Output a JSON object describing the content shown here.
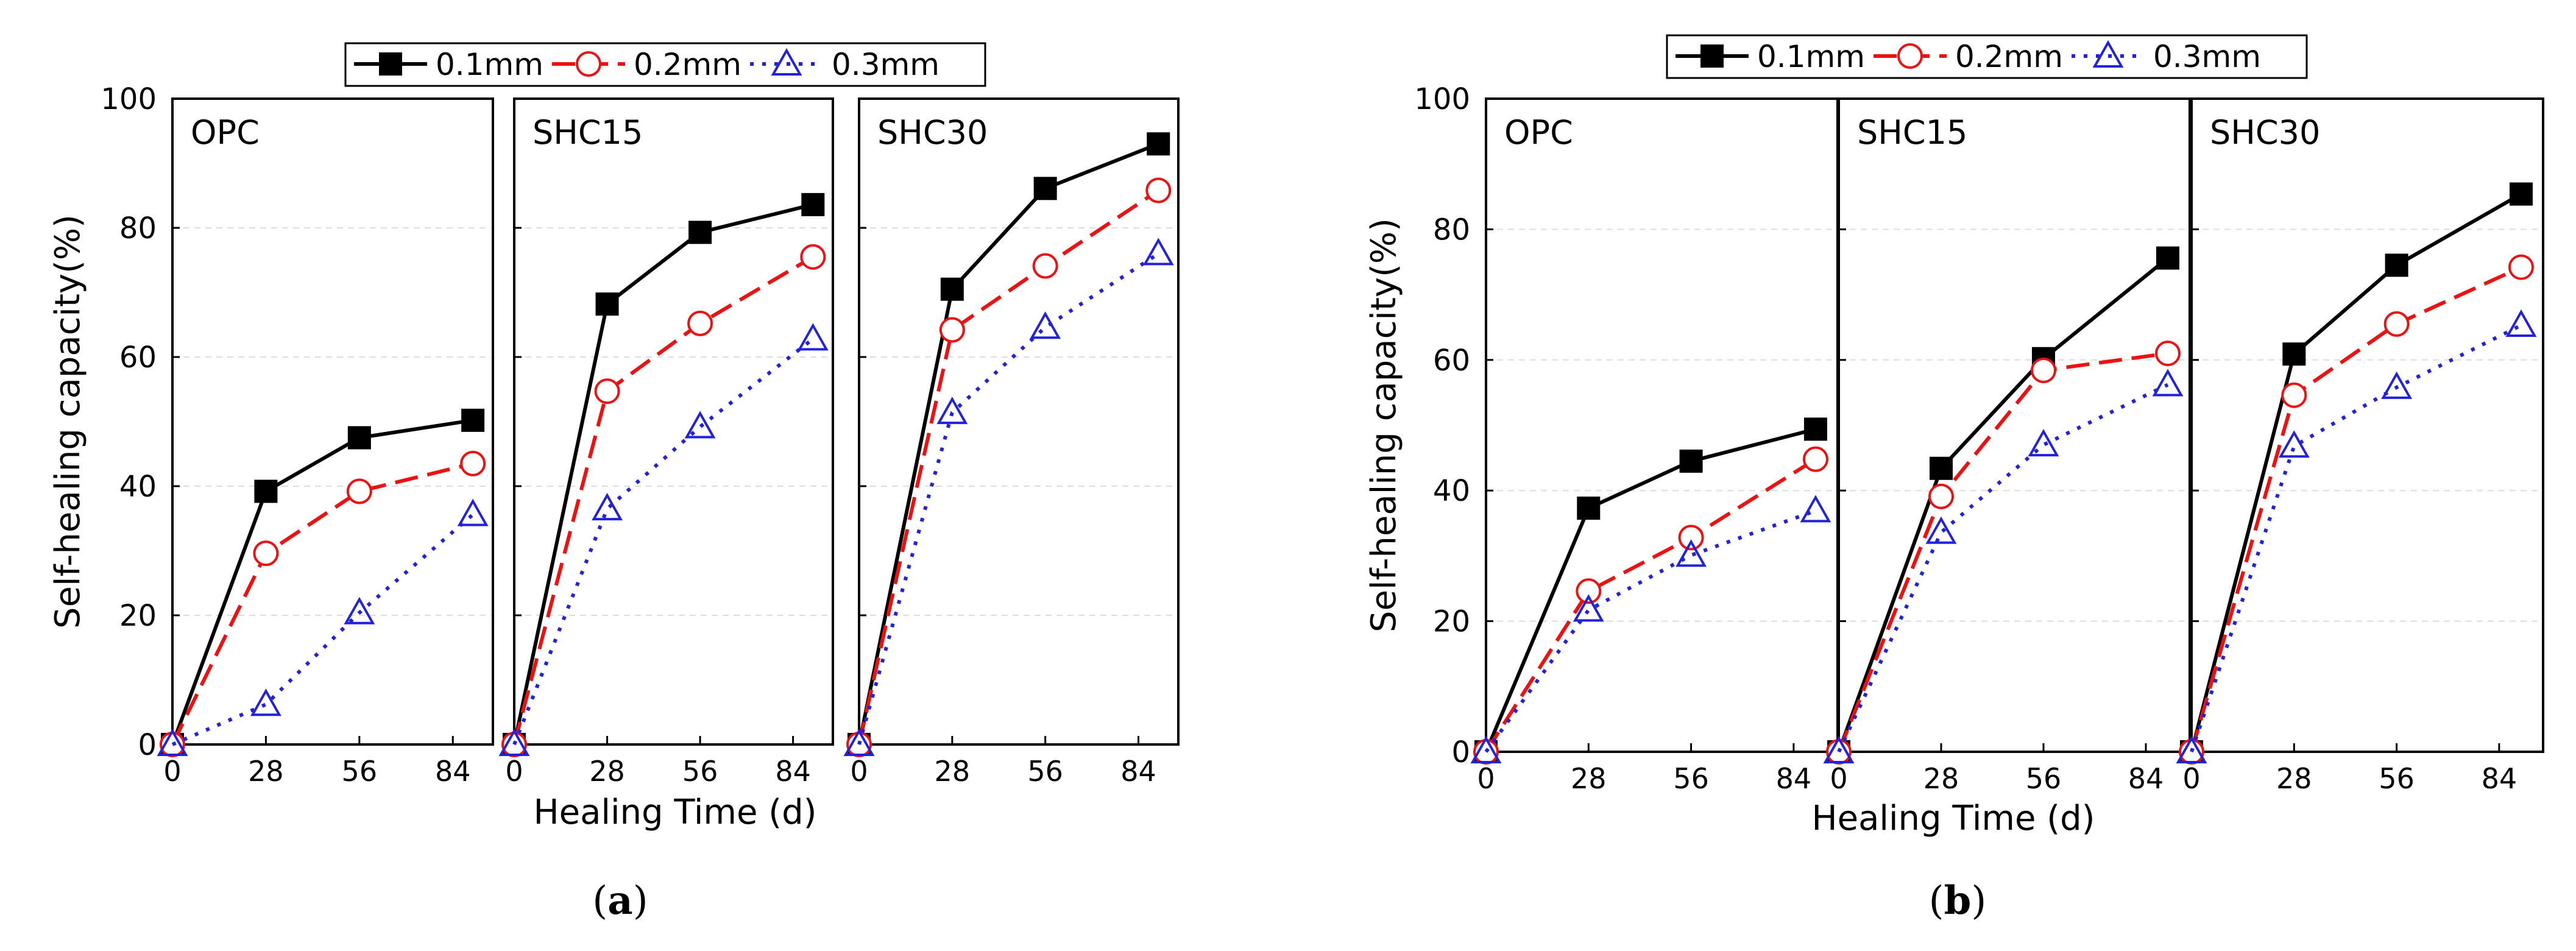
{
  "colors": {
    "s01": "#000000",
    "s02": "#ee1111",
    "s03": "#2222dd",
    "grid": "#dddddd"
  },
  "chart_data": [
    {
      "id": "a",
      "type": "line",
      "caption_letter": "a",
      "caption": "(a)",
      "xlabel": "Healing Time (d)",
      "ylabel": "Self-healing capacity(%)",
      "ylim": [
        0,
        100
      ],
      "yticks": [
        "0",
        "20",
        "40",
        "60",
        "80",
        "100"
      ],
      "xlim": [
        0,
        96
      ],
      "xticks": [
        "0",
        "28",
        "56",
        "84"
      ],
      "legend": [
        "0.1mm",
        "0.2mm",
        "0.3mm"
      ],
      "x": [
        0,
        28,
        56,
        90
      ],
      "panels": [
        {
          "name": "OPC",
          "series": [
            {
              "name": "0.1mm",
              "values": [
                0,
                39.2,
                47.5,
                50.2
              ]
            },
            {
              "name": "0.2mm",
              "values": [
                0,
                29.6,
                39.2,
                43.5
              ]
            },
            {
              "name": "0.3mm",
              "values": [
                0,
                6.2,
                20.4,
                35.6
              ]
            }
          ]
        },
        {
          "name": "SHC15",
          "series": [
            {
              "name": "0.1mm",
              "values": [
                0,
                68.2,
                79.3,
                83.6
              ]
            },
            {
              "name": "0.2mm",
              "values": [
                0,
                54.7,
                65.2,
                75.5
              ]
            },
            {
              "name": "0.3mm",
              "values": [
                0,
                36.5,
                49.2,
                62.8
              ]
            }
          ]
        },
        {
          "name": "SHC30",
          "series": [
            {
              "name": "0.1mm",
              "values": [
                0,
                70.5,
                86.1,
                93.0
              ]
            },
            {
              "name": "0.2mm",
              "values": [
                0,
                64.2,
                74.1,
                85.8
              ]
            },
            {
              "name": "0.3mm",
              "values": [
                0,
                51.4,
                64.6,
                76.0
              ]
            }
          ]
        }
      ]
    },
    {
      "id": "b",
      "type": "line",
      "caption_letter": "b",
      "caption": "(b)",
      "xlabel": "Healing Time (d)",
      "ylabel": "Self-healing capacity(%)",
      "ylim": [
        0,
        100
      ],
      "yticks": [
        "0",
        "20",
        "40",
        "60",
        "80",
        "100"
      ],
      "xlim": [
        0,
        96
      ],
      "xticks": [
        "0",
        "28",
        "56",
        "84"
      ],
      "legend": [
        "0.1mm",
        "0.2mm",
        "0.3mm"
      ],
      "x": [
        0,
        28,
        56,
        90
      ],
      "panels": [
        {
          "name": "OPC",
          "series": [
            {
              "name": "0.1mm",
              "values": [
                0,
                37.3,
                44.5,
                49.4
              ]
            },
            {
              "name": "0.2mm",
              "values": [
                0,
                24.6,
                32.8,
                44.8
              ]
            },
            {
              "name": "0.3mm",
              "values": [
                0,
                21.7,
                30.1,
                36.9
              ]
            }
          ]
        },
        {
          "name": "SHC15",
          "series": [
            {
              "name": "0.1mm",
              "values": [
                0,
                43.4,
                60.2,
                75.6
              ]
            },
            {
              "name": "0.2mm",
              "values": [
                0,
                39.1,
                58.4,
                61.0
              ]
            },
            {
              "name": "0.3mm",
              "values": [
                0,
                33.6,
                47.0,
                56.2
              ]
            }
          ]
        },
        {
          "name": "SHC30",
          "series": [
            {
              "name": "0.1mm",
              "values": [
                0,
                60.9,
                74.5,
                85.4
              ]
            },
            {
              "name": "0.2mm",
              "values": [
                0,
                54.6,
                65.5,
                74.2
              ]
            },
            {
              "name": "0.3mm",
              "values": [
                0,
                46.8,
                55.8,
                65.3
              ]
            }
          ]
        }
      ]
    }
  ]
}
